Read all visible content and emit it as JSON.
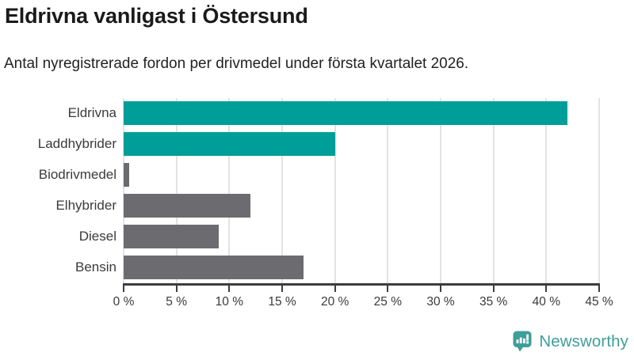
{
  "title": "Eldrivna vanligast i Östersund",
  "subtitle": "Antal nyregistrerade fordon per drivmedel under första kvartalet 2026.",
  "chart_data": {
    "type": "bar",
    "orientation": "horizontal",
    "title": "Eldrivna vanligast i Östersund",
    "subtitle": "Antal nyregistrerade fordon per drivmedel under första kvartalet 2026.",
    "categories": [
      "Eldrivna",
      "Laddhybrider",
      "Biodrivmedel",
      "Elhybrider",
      "Diesel",
      "Bensin"
    ],
    "values": [
      42,
      20,
      0.5,
      12,
      9,
      17
    ],
    "unit": "%",
    "bar_colors": [
      "#009e98",
      "#009e98",
      "#6c6c70",
      "#6c6c70",
      "#6c6c70",
      "#6c6c70"
    ],
    "xlim": [
      0,
      45
    ],
    "x_ticks": [
      0,
      5,
      10,
      15,
      20,
      25,
      30,
      35,
      40,
      45
    ],
    "x_tick_labels": [
      "0 %",
      "5 %",
      "10 %",
      "15 %",
      "20 %",
      "25 %",
      "30 %",
      "35 %",
      "40 %",
      "45 %"
    ],
    "grid": true,
    "legend": false
  },
  "colors": {
    "accent_teal": "#009e98",
    "bar_gray": "#6c6c70",
    "axis": "#3d3d3d",
    "gridline": "#e3e3e3",
    "logo_teal": "#3f9e99"
  },
  "branding": {
    "logo_text": "Newsworthy",
    "logo_icon": "speech-bubble-bar-chart-icon"
  }
}
